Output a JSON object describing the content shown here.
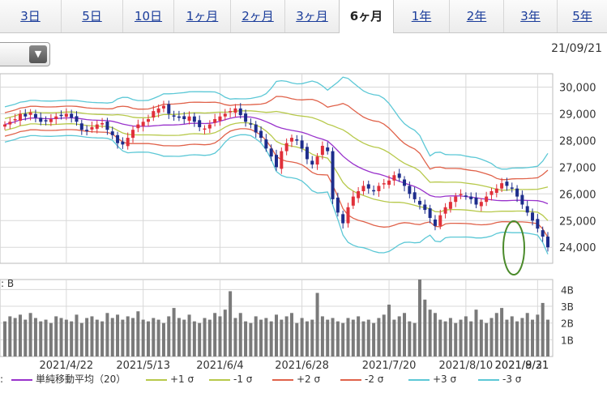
{
  "tabs": [
    {
      "label": "3日",
      "active": false
    },
    {
      "label": "5日",
      "active": false
    },
    {
      "label": "10日",
      "active": false
    },
    {
      "label": "1ヶ月",
      "active": false
    },
    {
      "label": "2ヶ月",
      "active": false
    },
    {
      "label": "3ヶ月",
      "active": false
    },
    {
      "label": "6ヶ月",
      "active": true
    },
    {
      "label": "1年",
      "active": false
    },
    {
      "label": "2年",
      "active": false
    },
    {
      "label": "3年",
      "active": false
    },
    {
      "label": "5年",
      "active": false
    }
  ],
  "dropdown": {
    "icon": "triangle-down-icon",
    "glyph": "▼"
  },
  "date_label": "21/09/21",
  "volume_label": ": B",
  "legend_prefix": ":",
  "legend": [
    {
      "label": "単純移動平均（20）",
      "color": "#9933cc"
    },
    {
      "label": "+1 σ",
      "color": "#b7c94b"
    },
    {
      "label": "-1 σ",
      "color": "#b7c94b"
    },
    {
      "label": "+2 σ",
      "color": "#e0624a"
    },
    {
      "label": "-2 σ",
      "color": "#e0624a"
    },
    {
      "label": "+3 σ",
      "color": "#5cc8d6"
    },
    {
      "label": "-3 σ",
      "color": "#5cc8d6"
    }
  ],
  "colors": {
    "up": "#e0303a",
    "down": "#1d2d8c",
    "volume": "#7a7a7a",
    "highlight": "#4a8a2a",
    "grid": "#d8d8d8"
  },
  "chart_data": {
    "type": "candlestick",
    "ylim": [
      23400,
      30500
    ],
    "yticks": [
      24000,
      25000,
      26000,
      27000,
      28000,
      29000,
      30000
    ],
    "ytick_labels": [
      "24,000",
      "25,000",
      "26,000",
      "27,000",
      "28,000",
      "29,000",
      "30,000"
    ],
    "xtick_labels": [
      "2021/4/22",
      "2021/5/13",
      "2021/6/4",
      "2021/6/28",
      "2021/7/20",
      "2021/8/10",
      "2021/8/31",
      "2021/9/21"
    ],
    "xtick_index": [
      12,
      27,
      42,
      58,
      75,
      90,
      104,
      120
    ],
    "bollinger": {
      "period": 20,
      "bands": [
        "+3σ",
        "+2σ",
        "+1σ",
        "MA",
        "-1σ",
        "-2σ",
        "-3σ"
      ]
    },
    "closes": [
      28600,
      28700,
      28800,
      29000,
      28900,
      29050,
      28850,
      28700,
      28750,
      28800,
      28900,
      28950,
      29000,
      28850,
      28700,
      28400,
      28350,
      28500,
      28600,
      28650,
      28400,
      28200,
      27900,
      27850,
      28100,
      28400,
      28600,
      28700,
      28800,
      29100,
      29200,
      29300,
      29000,
      28900,
      28850,
      28800,
      28900,
      28700,
      28500,
      28450,
      28600,
      28800,
      28900,
      29000,
      29100,
      29200,
      28950,
      28700,
      28600,
      28300,
      28100,
      27700,
      27400,
      27000,
      27600,
      27900,
      28100,
      28000,
      27700,
      27300,
      27100,
      27400,
      27800,
      27600,
      25800,
      25300,
      24900,
      25500,
      25900,
      26100,
      26300,
      26200,
      26100,
      26300,
      26400,
      26500,
      26700,
      26600,
      26300,
      26000,
      25800,
      25600,
      25400,
      25100,
      24800,
      25200,
      25500,
      25700,
      25900,
      26000,
      25900,
      25800,
      25600,
      25700,
      25900,
      26100,
      26200,
      26400,
      26300,
      26200,
      25900,
      25600,
      25300,
      25000,
      24700,
      24400,
      24000
    ],
    "volume_ylim": [
      0,
      4.6
    ],
    "volume_ticks": [
      1,
      2,
      3,
      4
    ],
    "volume_tick_labels": [
      "1B",
      "2B",
      "3B",
      "4B"
    ],
    "volumes": [
      2.1,
      2.4,
      2.3,
      2.5,
      2.2,
      2.6,
      2.3,
      2.1,
      2.2,
      2.0,
      2.4,
      2.3,
      2.2,
      2.1,
      2.5,
      2.0,
      2.3,
      2.4,
      2.2,
      2.1,
      2.6,
      2.3,
      2.5,
      2.2,
      2.4,
      2.3,
      2.7,
      2.2,
      2.1,
      2.3,
      2.2,
      2.0,
      2.4,
      2.9,
      2.3,
      2.2,
      2.5,
      2.1,
      2.0,
      2.3,
      2.2,
      2.6,
      2.4,
      2.8,
      3.9,
      2.3,
      2.6,
      2.1,
      2.0,
      2.4,
      2.2,
      2.3,
      2.1,
      2.5,
      2.2,
      2.4,
      2.6,
      2.0,
      2.3,
      2.1,
      2.2,
      3.8,
      2.4,
      2.2,
      2.3,
      2.1,
      2.0,
      2.3,
      2.2,
      2.4,
      2.1,
      2.2,
      2.0,
      2.3,
      2.5,
      3.1,
      2.2,
      2.4,
      2.6,
      2.1,
      2.0,
      4.7,
      3.4,
      2.8,
      2.6,
      2.2,
      2.1,
      2.3,
      2.0,
      2.2,
      2.4,
      2.1,
      2.8,
      2.2,
      2.0,
      2.3,
      2.6,
      2.9,
      2.2,
      2.4,
      2.1,
      2.3,
      2.6,
      2.2,
      2.5,
      3.2,
      2.2
    ]
  }
}
